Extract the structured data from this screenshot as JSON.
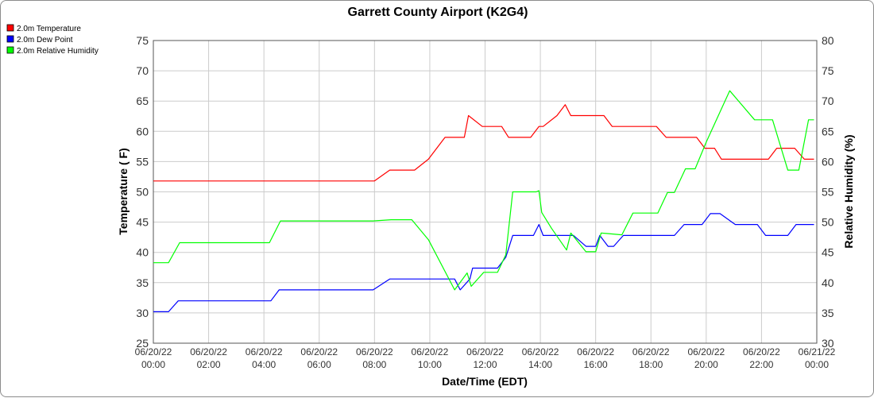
{
  "chart_data": {
    "type": "line",
    "title": "Garrett County Airport (K2G4)",
    "xlabel": "Date/Time (EDT)",
    "ylabel_left": "Temperature ( F)",
    "ylabel_right": "Relative Humidity (%)",
    "ylim_left": [
      25,
      75
    ],
    "ylim_right": [
      30,
      80
    ],
    "y_ticks_left": [
      "25",
      "30",
      "35",
      "40",
      "45",
      "50",
      "55",
      "60",
      "65",
      "70",
      "75"
    ],
    "y_ticks_right": [
      "30",
      "35",
      "40",
      "45",
      "50",
      "55",
      "60",
      "65",
      "70",
      "75",
      "80"
    ],
    "x_ticks": [
      {
        "date": "06/20/22",
        "time": "00:00"
      },
      {
        "date": "06/20/22",
        "time": "02:00"
      },
      {
        "date": "06/20/22",
        "time": "04:00"
      },
      {
        "date": "06/20/22",
        "time": "06:00"
      },
      {
        "date": "06/20/22",
        "time": "08:00"
      },
      {
        "date": "06/20/22",
        "time": "10:00"
      },
      {
        "date": "06/20/22",
        "time": "12:00"
      },
      {
        "date": "06/20/22",
        "time": "14:00"
      },
      {
        "date": "06/20/22",
        "time": "16:00"
      },
      {
        "date": "06/20/22",
        "time": "18:00"
      },
      {
        "date": "06/20/22",
        "time": "20:00"
      },
      {
        "date": "06/20/22",
        "time": "22:00"
      },
      {
        "date": "06/21/22",
        "time": "00:00"
      }
    ],
    "grid": true,
    "legend_position": "top-left",
    "series": [
      {
        "name": "2.0m Temperature",
        "axis": "left",
        "color": "#ff0000",
        "points": [
          [
            0.0,
            51.8
          ],
          [
            8.0,
            51.8
          ],
          [
            8.55,
            53.6
          ],
          [
            9.45,
            53.6
          ],
          [
            9.95,
            55.4
          ],
          [
            10.55,
            59.0
          ],
          [
            11.25,
            59.0
          ],
          [
            11.4,
            62.6
          ],
          [
            11.9,
            60.8
          ],
          [
            12.6,
            60.8
          ],
          [
            12.85,
            59.0
          ],
          [
            13.65,
            59.0
          ],
          [
            13.95,
            60.8
          ],
          [
            14.1,
            60.8
          ],
          [
            14.6,
            62.6
          ],
          [
            14.9,
            64.4
          ],
          [
            15.1,
            62.6
          ],
          [
            16.3,
            62.6
          ],
          [
            16.6,
            60.8
          ],
          [
            18.2,
            60.8
          ],
          [
            18.55,
            59.0
          ],
          [
            19.65,
            59.0
          ],
          [
            19.95,
            57.2
          ],
          [
            20.3,
            57.2
          ],
          [
            20.55,
            55.4
          ],
          [
            22.25,
            55.4
          ],
          [
            22.55,
            57.2
          ],
          [
            23.2,
            57.2
          ],
          [
            23.55,
            55.4
          ],
          [
            23.9,
            55.4
          ]
        ]
      },
      {
        "name": "2.0m Dew Point",
        "axis": "left",
        "color": "#0000ff",
        "points": [
          [
            0.0,
            30.2
          ],
          [
            0.55,
            30.2
          ],
          [
            0.9,
            32.0
          ],
          [
            4.25,
            32.0
          ],
          [
            4.55,
            33.8
          ],
          [
            7.95,
            33.8
          ],
          [
            8.55,
            35.6
          ],
          [
            10.5,
            35.6
          ],
          [
            10.9,
            35.6
          ],
          [
            11.1,
            33.8
          ],
          [
            11.45,
            35.6
          ],
          [
            11.55,
            37.4
          ],
          [
            12.45,
            37.4
          ],
          [
            12.75,
            39.2
          ],
          [
            13.0,
            42.8
          ],
          [
            13.75,
            42.8
          ],
          [
            13.95,
            44.6
          ],
          [
            14.1,
            42.8
          ],
          [
            15.2,
            42.8
          ],
          [
            15.65,
            41.0
          ],
          [
            16.0,
            41.0
          ],
          [
            16.15,
            42.8
          ],
          [
            16.45,
            41.0
          ],
          [
            16.65,
            41.0
          ],
          [
            17.0,
            42.8
          ],
          [
            18.85,
            42.8
          ],
          [
            19.2,
            44.6
          ],
          [
            19.85,
            44.6
          ],
          [
            20.15,
            46.4
          ],
          [
            20.5,
            46.4
          ],
          [
            21.05,
            44.6
          ],
          [
            21.85,
            44.6
          ],
          [
            22.15,
            42.8
          ],
          [
            22.95,
            42.8
          ],
          [
            23.25,
            44.6
          ],
          [
            23.9,
            44.6
          ]
        ]
      },
      {
        "name": "2.0m Relative Humidity",
        "axis": "right",
        "color": "#00ff00",
        "points": [
          [
            0.0,
            43.3
          ],
          [
            0.55,
            43.3
          ],
          [
            0.95,
            46.6
          ],
          [
            4.2,
            46.6
          ],
          [
            4.6,
            50.2
          ],
          [
            7.95,
            50.2
          ],
          [
            8.6,
            50.4
          ],
          [
            9.35,
            50.4
          ],
          [
            9.95,
            47.1
          ],
          [
            10.9,
            38.8
          ],
          [
            11.35,
            41.6
          ],
          [
            11.5,
            39.4
          ],
          [
            11.95,
            41.7
          ],
          [
            12.45,
            41.7
          ],
          [
            12.75,
            44.6
          ],
          [
            13.0,
            55.0
          ],
          [
            13.85,
            55.0
          ],
          [
            13.95,
            55.2
          ],
          [
            14.05,
            51.6
          ],
          [
            14.4,
            49.0
          ],
          [
            14.95,
            45.4
          ],
          [
            15.1,
            48.2
          ],
          [
            15.65,
            45.1
          ],
          [
            16.0,
            45.1
          ],
          [
            16.2,
            48.2
          ],
          [
            16.95,
            47.9
          ],
          [
            17.35,
            51.5
          ],
          [
            18.25,
            51.5
          ],
          [
            18.6,
            54.9
          ],
          [
            18.85,
            54.9
          ],
          [
            19.25,
            58.8
          ],
          [
            19.6,
            58.8
          ],
          [
            20.0,
            63.2
          ],
          [
            20.85,
            71.7
          ],
          [
            21.75,
            66.9
          ],
          [
            22.4,
            66.9
          ],
          [
            22.95,
            58.6
          ],
          [
            23.35,
            58.6
          ],
          [
            23.7,
            66.9
          ],
          [
            23.9,
            66.9
          ]
        ]
      }
    ]
  }
}
